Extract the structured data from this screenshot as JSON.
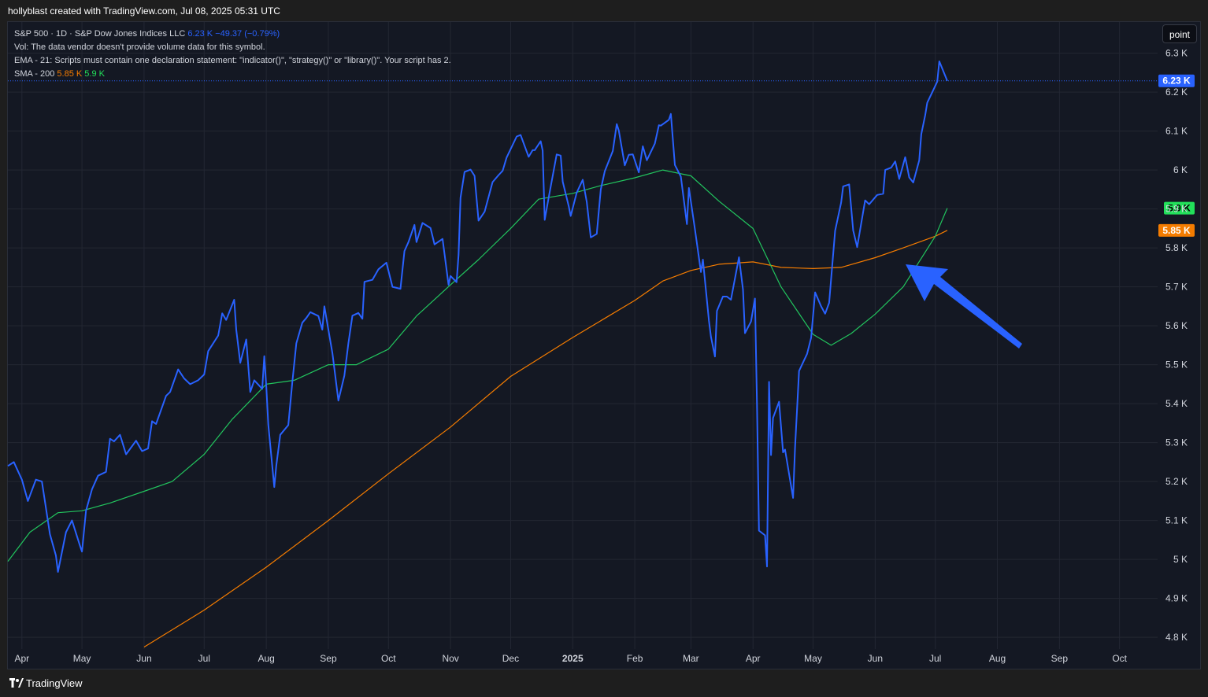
{
  "header": {
    "text": "hollyblast created with TradingView.com, Jul 08, 2025 05:31 UTC"
  },
  "legend": {
    "symbol_line": "S&P 500 · 1D · S&P Dow Jones Indices LLC",
    "price": "6.23 K",
    "change": "−49.37 (−0.79%)",
    "vol_line": "Vol: The data vendor doesn't provide volume data for this symbol.",
    "ema_line": "EMA - 21: Scripts must contain one declaration statement: \"indicator()\", \"strategy()\" or \"library()\". Your script has 2.",
    "sma_label": "SMA - 200",
    "sma_value": "5.85 K",
    "ema_value": "5.9 K"
  },
  "toolbar": {
    "point_label": "point"
  },
  "footer": {
    "brand": "TradingView"
  },
  "colors": {
    "price": "#2962ff",
    "sma200": "#f57c00",
    "ema": "#22c55e",
    "background": "#141823",
    "grid": "#232733",
    "arrow": "#2962ff"
  },
  "chart_data": {
    "type": "line",
    "title": "S&P 500 · 1D · S&P Dow Jones Indices LLC",
    "y_ticks": [
      "6.3 K",
      "6.2 K",
      "6.1 K",
      "6 K",
      "5.9 K",
      "5.8 K",
      "5.7 K",
      "5.6 K",
      "5.5 K",
      "5.4 K",
      "5.3 K",
      "5.2 K",
      "5.1 K",
      "5 K",
      "4.9 K",
      "4.8 K"
    ],
    "x_ticks": [
      "Apr",
      "May",
      "Jun",
      "Jul",
      "Aug",
      "Sep",
      "Oct",
      "Nov",
      "Dec",
      "2025",
      "Feb",
      "Mar",
      "Apr",
      "May",
      "Jun",
      "Jul",
      "Aug",
      "Sep",
      "Oct"
    ],
    "ylim": [
      4770,
      6380
    ],
    "xlim": [
      "2024-03-25",
      "2025-10-20"
    ],
    "price_badges": [
      {
        "label": "6.23 K",
        "value": 6229,
        "color": "#2962ff"
      },
      {
        "label": "5.9 K",
        "value": 5902,
        "color": "#22e05a"
      },
      {
        "label": "5.85 K",
        "value": 5845,
        "color": "#f57c00"
      }
    ],
    "series": [
      {
        "name": "S&P 500",
        "color": "#2962ff",
        "points": [
          [
            "2024-03-25",
            5240
          ],
          [
            "2024-03-28",
            5250
          ],
          [
            "2024-04-01",
            5205
          ],
          [
            "2024-04-04",
            5150
          ],
          [
            "2024-04-08",
            5205
          ],
          [
            "2024-04-11",
            5200
          ],
          [
            "2024-04-15",
            5065
          ],
          [
            "2024-04-18",
            5010
          ],
          [
            "2024-04-19",
            4968
          ],
          [
            "2024-04-23",
            5070
          ],
          [
            "2024-04-26",
            5100
          ],
          [
            "2024-04-30",
            5035
          ],
          [
            "2024-05-01",
            5020
          ],
          [
            "2024-05-03",
            5125
          ],
          [
            "2024-05-06",
            5180
          ],
          [
            "2024-05-09",
            5215
          ],
          [
            "2024-05-13",
            5225
          ],
          [
            "2024-05-15",
            5310
          ],
          [
            "2024-05-17",
            5303
          ],
          [
            "2024-05-20",
            5320
          ],
          [
            "2024-05-23",
            5270
          ],
          [
            "2024-05-28",
            5305
          ],
          [
            "2024-05-31",
            5278
          ],
          [
            "2024-06-03",
            5285
          ],
          [
            "2024-06-05",
            5355
          ],
          [
            "2024-06-07",
            5348
          ],
          [
            "2024-06-12",
            5420
          ],
          [
            "2024-06-14",
            5430
          ],
          [
            "2024-06-18",
            5488
          ],
          [
            "2024-06-21",
            5465
          ],
          [
            "2024-06-24",
            5450
          ],
          [
            "2024-06-28",
            5460
          ],
          [
            "2024-07-01",
            5475
          ],
          [
            "2024-07-03",
            5535
          ],
          [
            "2024-07-08",
            5575
          ],
          [
            "2024-07-10",
            5632
          ],
          [
            "2024-07-12",
            5615
          ],
          [
            "2024-07-16",
            5667
          ],
          [
            "2024-07-17",
            5590
          ],
          [
            "2024-07-19",
            5505
          ],
          [
            "2024-07-22",
            5565
          ],
          [
            "2024-07-24",
            5430
          ],
          [
            "2024-07-26",
            5460
          ],
          [
            "2024-07-30",
            5438
          ],
          [
            "2024-07-31",
            5522
          ],
          [
            "2024-08-01",
            5446
          ],
          [
            "2024-08-02",
            5346
          ],
          [
            "2024-08-05",
            5186
          ],
          [
            "2024-08-06",
            5240
          ],
          [
            "2024-08-08",
            5320
          ],
          [
            "2024-08-12",
            5345
          ],
          [
            "2024-08-14",
            5455
          ],
          [
            "2024-08-16",
            5555
          ],
          [
            "2024-08-19",
            5608
          ],
          [
            "2024-08-21",
            5620
          ],
          [
            "2024-08-23",
            5635
          ],
          [
            "2024-08-27",
            5625
          ],
          [
            "2024-08-29",
            5590
          ],
          [
            "2024-08-30",
            5650
          ],
          [
            "2024-09-03",
            5530
          ],
          [
            "2024-09-06",
            5408
          ],
          [
            "2024-09-09",
            5472
          ],
          [
            "2024-09-11",
            5555
          ],
          [
            "2024-09-13",
            5626
          ],
          [
            "2024-09-16",
            5633
          ],
          [
            "2024-09-18",
            5618
          ],
          [
            "2024-09-19",
            5713
          ],
          [
            "2024-09-23",
            5718
          ],
          [
            "2024-09-26",
            5745
          ],
          [
            "2024-09-30",
            5762
          ],
          [
            "2024-10-03",
            5700
          ],
          [
            "2024-10-07",
            5695
          ],
          [
            "2024-10-09",
            5792
          ],
          [
            "2024-10-11",
            5815
          ],
          [
            "2024-10-14",
            5859
          ],
          [
            "2024-10-15",
            5815
          ],
          [
            "2024-10-18",
            5864
          ],
          [
            "2024-10-22",
            5851
          ],
          [
            "2024-10-24",
            5809
          ],
          [
            "2024-10-28",
            5823
          ],
          [
            "2024-10-31",
            5705
          ],
          [
            "2024-11-01",
            5728
          ],
          [
            "2024-11-04",
            5712
          ],
          [
            "2024-11-05",
            5782
          ],
          [
            "2024-11-06",
            5929
          ],
          [
            "2024-11-08",
            5995
          ],
          [
            "2024-11-11",
            6001
          ],
          [
            "2024-11-13",
            5985
          ],
          [
            "2024-11-15",
            5870
          ],
          [
            "2024-11-18",
            5893
          ],
          [
            "2024-11-22",
            5969
          ],
          [
            "2024-11-25",
            5987
          ],
          [
            "2024-11-27",
            5998
          ],
          [
            "2024-11-29",
            6032
          ],
          [
            "2024-12-04",
            6086
          ],
          [
            "2024-12-06",
            6090
          ],
          [
            "2024-12-10",
            6034
          ],
          [
            "2024-12-12",
            6051
          ],
          [
            "2024-12-13",
            6051
          ],
          [
            "2024-12-16",
            6074
          ],
          [
            "2024-12-17",
            6050
          ],
          [
            "2024-12-18",
            5872
          ],
          [
            "2024-12-20",
            5930
          ],
          [
            "2024-12-24",
            6040
          ],
          [
            "2024-12-26",
            6037
          ],
          [
            "2024-12-27",
            5970
          ],
          [
            "2024-12-30",
            5907
          ],
          [
            "2024-12-31",
            5882
          ],
          [
            "2025-01-03",
            5942
          ],
          [
            "2025-01-06",
            5975
          ],
          [
            "2025-01-08",
            5918
          ],
          [
            "2025-01-10",
            5827
          ],
          [
            "2025-01-13",
            5836
          ],
          [
            "2025-01-15",
            5950
          ],
          [
            "2025-01-17",
            5997
          ],
          [
            "2025-01-21",
            6049
          ],
          [
            "2025-01-23",
            6118
          ],
          [
            "2025-01-24",
            6101
          ],
          [
            "2025-01-27",
            6012
          ],
          [
            "2025-01-29",
            6039
          ],
          [
            "2025-01-31",
            6040
          ],
          [
            "2025-02-03",
            5994
          ],
          [
            "2025-02-05",
            6061
          ],
          [
            "2025-02-07",
            6025
          ],
          [
            "2025-02-11",
            6068
          ],
          [
            "2025-02-13",
            6115
          ],
          [
            "2025-02-14",
            6114
          ],
          [
            "2025-02-18",
            6129
          ],
          [
            "2025-02-19",
            6144
          ],
          [
            "2025-02-21",
            6013
          ],
          [
            "2025-02-24",
            5983
          ],
          [
            "2025-02-27",
            5861
          ],
          [
            "2025-02-28",
            5954
          ],
          [
            "2025-03-03",
            5849
          ],
          [
            "2025-03-06",
            5738
          ],
          [
            "2025-03-07",
            5770
          ],
          [
            "2025-03-10",
            5614
          ],
          [
            "2025-03-11",
            5572
          ],
          [
            "2025-03-13",
            5521
          ],
          [
            "2025-03-14",
            5638
          ],
          [
            "2025-03-17",
            5675
          ],
          [
            "2025-03-19",
            5675
          ],
          [
            "2025-03-21",
            5667
          ],
          [
            "2025-03-25",
            5776
          ],
          [
            "2025-03-27",
            5693
          ],
          [
            "2025-03-28",
            5581
          ],
          [
            "2025-03-31",
            5611
          ],
          [
            "2025-04-02",
            5670
          ],
          [
            "2025-04-03",
            5396
          ],
          [
            "2025-04-04",
            5074
          ],
          [
            "2025-04-07",
            5062
          ],
          [
            "2025-04-08",
            4982
          ],
          [
            "2025-04-09",
            5456
          ],
          [
            "2025-04-10",
            5268
          ],
          [
            "2025-04-11",
            5363
          ],
          [
            "2025-04-14",
            5405
          ],
          [
            "2025-04-16",
            5275
          ],
          [
            "2025-04-17",
            5282
          ],
          [
            "2025-04-21",
            5158
          ],
          [
            "2025-04-22",
            5287
          ],
          [
            "2025-04-24",
            5484
          ],
          [
            "2025-04-28",
            5528
          ],
          [
            "2025-04-30",
            5569
          ],
          [
            "2025-05-02",
            5686
          ],
          [
            "2025-05-05",
            5650
          ],
          [
            "2025-05-07",
            5631
          ],
          [
            "2025-05-09",
            5659
          ],
          [
            "2025-05-12",
            5844
          ],
          [
            "2025-05-15",
            5916
          ],
          [
            "2025-05-16",
            5958
          ],
          [
            "2025-05-19",
            5963
          ],
          [
            "2025-05-21",
            5845
          ],
          [
            "2025-05-23",
            5802
          ],
          [
            "2025-05-27",
            5922
          ],
          [
            "2025-05-29",
            5912
          ],
          [
            "2025-06-02",
            5936
          ],
          [
            "2025-06-05",
            5939
          ],
          [
            "2025-06-06",
            6000
          ],
          [
            "2025-06-09",
            6006
          ],
          [
            "2025-06-11",
            6022
          ],
          [
            "2025-06-13",
            5977
          ],
          [
            "2025-06-16",
            6033
          ],
          [
            "2025-06-18",
            5981
          ],
          [
            "2025-06-20",
            5968
          ],
          [
            "2025-06-23",
            6025
          ],
          [
            "2025-06-24",
            6092
          ],
          [
            "2025-06-26",
            6141
          ],
          [
            "2025-06-27",
            6173
          ],
          [
            "2025-06-30",
            6205
          ],
          [
            "2025-07-02",
            6227
          ],
          [
            "2025-07-03",
            6279
          ],
          [
            "2025-07-07",
            6229
          ]
        ]
      },
      {
        "name": "SMA - 200",
        "color": "#f57c00",
        "points": [
          [
            "2024-06-01",
            4775
          ],
          [
            "2024-07-01",
            4870
          ],
          [
            "2024-08-01",
            4980
          ],
          [
            "2024-09-01",
            5100
          ],
          [
            "2024-10-01",
            5220
          ],
          [
            "2024-11-01",
            5340
          ],
          [
            "2024-12-01",
            5470
          ],
          [
            "2025-01-01",
            5570
          ],
          [
            "2025-02-01",
            5665
          ],
          [
            "2025-02-15",
            5715
          ],
          [
            "2025-03-01",
            5742
          ],
          [
            "2025-03-15",
            5758
          ],
          [
            "2025-04-01",
            5764
          ],
          [
            "2025-04-15",
            5750
          ],
          [
            "2025-05-01",
            5747
          ],
          [
            "2025-05-15",
            5750
          ],
          [
            "2025-06-01",
            5775
          ],
          [
            "2025-06-15",
            5800
          ],
          [
            "2025-07-01",
            5830
          ],
          [
            "2025-07-07",
            5845
          ]
        ]
      },
      {
        "name": "EMA - 21",
        "color": "#22c55e",
        "points": [
          [
            "2024-03-25",
            4995
          ],
          [
            "2024-04-05",
            5070
          ],
          [
            "2024-04-19",
            5120
          ],
          [
            "2024-05-01",
            5125
          ],
          [
            "2024-05-15",
            5145
          ],
          [
            "2024-06-01",
            5175
          ],
          [
            "2024-06-15",
            5200
          ],
          [
            "2024-07-01",
            5270
          ],
          [
            "2024-07-15",
            5360
          ],
          [
            "2024-08-01",
            5450
          ],
          [
            "2024-08-15",
            5460
          ],
          [
            "2024-09-01",
            5500
          ],
          [
            "2024-09-15",
            5500
          ],
          [
            "2024-10-01",
            5540
          ],
          [
            "2024-10-15",
            5625
          ],
          [
            "2024-11-01",
            5705
          ],
          [
            "2024-11-15",
            5770
          ],
          [
            "2024-12-01",
            5850
          ],
          [
            "2024-12-15",
            5925
          ],
          [
            "2025-01-01",
            5940
          ],
          [
            "2025-01-15",
            5960
          ],
          [
            "2025-02-01",
            5980
          ],
          [
            "2025-02-15",
            6000
          ],
          [
            "2025-03-01",
            5985
          ],
          [
            "2025-03-15",
            5920
          ],
          [
            "2025-04-01",
            5850
          ],
          [
            "2025-04-15",
            5700
          ],
          [
            "2025-05-01",
            5578
          ],
          [
            "2025-05-10",
            5550
          ],
          [
            "2025-05-20",
            5580
          ],
          [
            "2025-06-01",
            5630
          ],
          [
            "2025-06-15",
            5700
          ],
          [
            "2025-07-01",
            5830
          ],
          [
            "2025-07-07",
            5902
          ]
        ]
      }
    ]
  }
}
